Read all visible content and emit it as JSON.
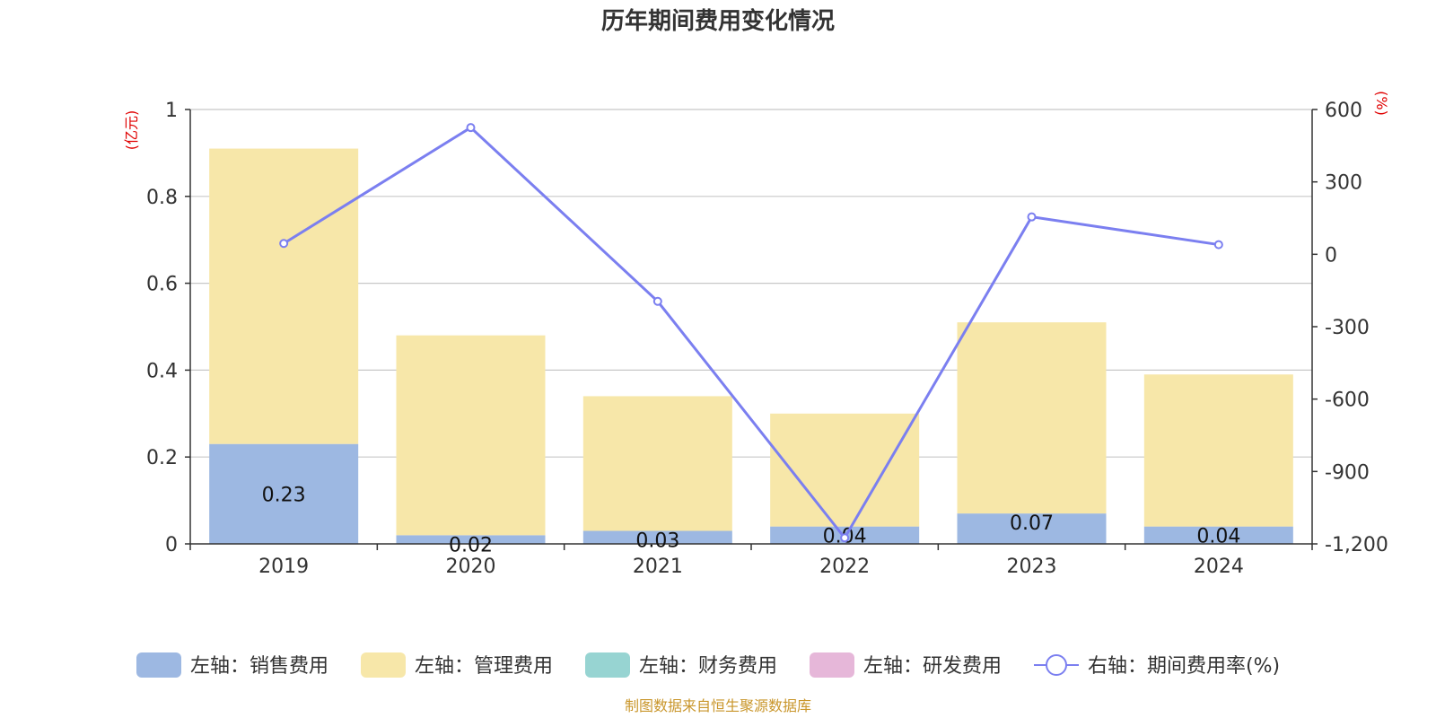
{
  "chart_data": {
    "type": "bar",
    "title": "历年期间费用变化情况",
    "categories": [
      "2019",
      "2020",
      "2021",
      "2022",
      "2023",
      "2024"
    ],
    "left_axis": {
      "unit": "(亿元)",
      "ylim": [
        0,
        1
      ],
      "ticks": [
        "0",
        "0.2",
        "0.4",
        "0.6",
        "0.8",
        "1"
      ],
      "tick_values": [
        0,
        0.2,
        0.4,
        0.6,
        0.8,
        1
      ]
    },
    "right_axis": {
      "unit": "(%)",
      "ylim": [
        -1200,
        600
      ],
      "ticks": [
        "-1,200",
        "-900",
        "-600",
        "-300",
        "0",
        "300",
        "600"
      ],
      "tick_values": [
        -1200,
        -900,
        -600,
        -300,
        0,
        300,
        600
      ]
    },
    "series": [
      {
        "name": "左轴：销售费用",
        "type": "bar",
        "stack": "total",
        "color": "#9db8e2",
        "values": [
          0.23,
          0.02,
          0.03,
          0.04,
          0.07,
          0.04
        ],
        "labels": [
          "0.23",
          "0.02",
          "0.03",
          "0.04",
          "0.07",
          "0.04"
        ]
      },
      {
        "name": "左轴：管理费用",
        "type": "bar",
        "stack": "total",
        "color": "#f7e7a9",
        "values": [
          0.68,
          0.46,
          0.31,
          0.26,
          0.44,
          0.35
        ]
      },
      {
        "name": "左轴：财务费用",
        "type": "bar",
        "stack": "total",
        "color": "#97d4d2",
        "values": [
          0,
          0,
          0,
          0,
          0,
          0
        ]
      },
      {
        "name": "左轴：研发费用",
        "type": "bar",
        "stack": "total",
        "color": "#e6b7d9",
        "values": [
          0,
          0,
          0,
          0,
          0,
          0
        ]
      },
      {
        "name": "右轴：期间费用率(%)",
        "type": "line",
        "axis": "right",
        "color": "#7b7ff0",
        "values": [
          45,
          525,
          -195,
          -1175,
          155,
          40
        ]
      }
    ],
    "legend": "bottom",
    "grid": true
  },
  "footer": {
    "source": "制图数据来自恒生聚源数据库"
  }
}
